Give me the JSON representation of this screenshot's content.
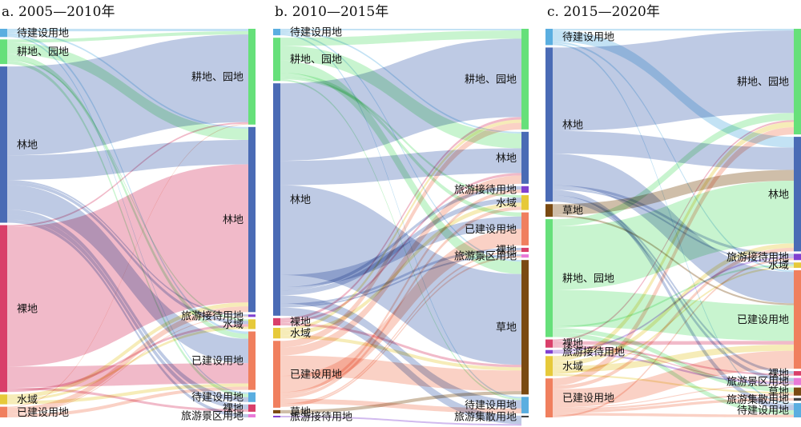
{
  "colors": {
    "待建设用地": "#5aaee0",
    "耕地、园地": "#66e07a",
    "林地": "#4a6bb5",
    "裸地": "#d93f6a",
    "水域": "#e6c93a",
    "已建设用地": "#f07f5e",
    "旅游接待用地": "#8040d0",
    "旅游景区用地": "#e87ad8",
    "草地": "#7a4a12",
    "旅游集散用地": "#444444"
  },
  "panels": [
    {
      "title": "a. 2005—2010年",
      "left": [
        {
          "id": "l_dj",
          "label": "待建设用地",
          "cat": "待建设用地",
          "value": 10
        },
        {
          "id": "l_gd",
          "label": "耕地、园地",
          "cat": "耕地、园地",
          "value": 30
        },
        {
          "id": "l_ld",
          "label": "林地",
          "cat": "林地",
          "value": 190
        },
        {
          "id": "l_lu",
          "label": "裸地",
          "cat": "裸地",
          "value": 203
        },
        {
          "id": "l_sy",
          "label": "水域",
          "cat": "水域",
          "value": 12
        },
        {
          "id": "l_yj",
          "label": "已建设用地",
          "cat": "已建设用地",
          "value": 13
        }
      ],
      "right": [
        {
          "id": "r_gd",
          "label": "耕地、园地",
          "cat": "耕地、园地",
          "value": 118
        },
        {
          "id": "r_ld",
          "label": "林地",
          "cat": "林地",
          "value": 228
        },
        {
          "id": "r_jd",
          "label": "旅游接待用地",
          "cat": "旅游接待用地",
          "value": 3
        },
        {
          "id": "r_sy",
          "label": "水域",
          "cat": "水域",
          "value": 12
        },
        {
          "id": "r_yj",
          "label": "已建设用地",
          "cat": "已建设用地",
          "value": 72
        },
        {
          "id": "r_dj",
          "label": "待建设用地",
          "cat": "待建设用地",
          "value": 12
        },
        {
          "id": "r_lu",
          "label": "裸地",
          "cat": "裸地",
          "value": 9
        },
        {
          "id": "r_jq",
          "label": "旅游景区用地",
          "cat": "旅游景区用地",
          "value": 4
        }
      ],
      "links": [
        [
          "l_dj",
          "r_gd",
          3
        ],
        [
          "l_dj",
          "r_ld",
          2
        ],
        [
          "l_dj",
          "r_yj",
          3
        ],
        [
          "l_dj",
          "r_dj",
          2
        ],
        [
          "l_gd",
          "r_gd",
          4
        ],
        [
          "l_gd",
          "r_ld",
          14
        ],
        [
          "l_gd",
          "r_yj",
          6
        ],
        [
          "l_gd",
          "r_sy",
          2
        ],
        [
          "l_gd",
          "r_dj",
          4
        ],
        [
          "l_ld",
          "r_gd",
          108
        ],
        [
          "l_ld",
          "r_ld",
          30
        ],
        [
          "l_ld",
          "r_jd",
          2
        ],
        [
          "l_ld",
          "r_sy",
          4
        ],
        [
          "l_ld",
          "r_yj",
          30
        ],
        [
          "l_ld",
          "r_dj",
          6
        ],
        [
          "l_ld",
          "r_lu",
          6
        ],
        [
          "l_ld",
          "r_jq",
          4
        ],
        [
          "l_lu",
          "r_gd",
          2
        ],
        [
          "l_lu",
          "r_ld",
          170
        ],
        [
          "l_lu",
          "r_yj",
          25
        ],
        [
          "l_lu",
          "r_lu",
          3
        ],
        [
          "l_lu",
          "r_sy",
          3
        ],
        [
          "l_sy",
          "r_ld",
          5
        ],
        [
          "l_sy",
          "r_sy",
          3
        ],
        [
          "l_sy",
          "r_yj",
          4
        ],
        [
          "l_yj",
          "r_gd",
          1
        ],
        [
          "l_yj",
          "r_ld",
          7
        ],
        [
          "l_yj",
          "r_jd",
          1
        ],
        [
          "l_yj",
          "r_yj",
          4
        ]
      ]
    },
    {
      "title": "b. 2010—2015年",
      "left": [
        {
          "id": "l_dj",
          "label": "待建设用地",
          "cat": "待建设用地",
          "value": 8
        },
        {
          "id": "l_gd",
          "label": "耕地、园地",
          "cat": "耕地、园地",
          "value": 53
        },
        {
          "id": "l_ld",
          "label": "林地",
          "cat": "林地",
          "value": 285
        },
        {
          "id": "l_lu",
          "label": "裸地",
          "cat": "裸地",
          "value": 9
        },
        {
          "id": "l_sy",
          "label": "水域",
          "cat": "水域",
          "value": 13
        },
        {
          "id": "l_yj",
          "label": "已建设用地",
          "cat": "已建设用地",
          "value": 82
        },
        {
          "id": "l_cd",
          "label": "草地",
          "cat": "草地",
          "value": 4
        },
        {
          "id": "l_jd",
          "label": "旅游接待用地",
          "cat": "旅游接待用地",
          "value": 2
        }
      ],
      "right": [
        {
          "id": "r_gd",
          "label": "耕地、园地",
          "cat": "耕地、园地",
          "value": 122
        },
        {
          "id": "r_ld",
          "label": "林地",
          "cat": "林地",
          "value": 63
        },
        {
          "id": "r_jd",
          "label": "旅游接待用地",
          "cat": "旅游接待用地",
          "value": 8
        },
        {
          "id": "r_sy",
          "label": "水域",
          "cat": "水域",
          "value": 18
        },
        {
          "id": "r_yj",
          "label": "已建设用地",
          "cat": "已建设用地",
          "value": 40
        },
        {
          "id": "r_lu",
          "label": "裸地",
          "cat": "裸地",
          "value": 5
        },
        {
          "id": "r_jq",
          "label": "旅游景区用地",
          "cat": "旅游景区用地",
          "value": 4
        },
        {
          "id": "r_cd",
          "label": "草地",
          "cat": "草地",
          "value": 163
        },
        {
          "id": "r_dj",
          "label": "待建设用地",
          "cat": "待建设用地",
          "value": 20
        },
        {
          "id": "r_js",
          "label": "旅游集散用地",
          "cat": "旅游集散用地",
          "value": 2
        }
      ],
      "links": [
        [
          "l_dj",
          "r_gd",
          2
        ],
        [
          "l_dj",
          "r_ld",
          2
        ],
        [
          "l_dj",
          "r_cd",
          2
        ],
        [
          "l_dj",
          "r_dj",
          2
        ],
        [
          "l_gd",
          "r_gd",
          10
        ],
        [
          "l_gd",
          "r_ld",
          18
        ],
        [
          "l_gd",
          "r_cd",
          15
        ],
        [
          "l_gd",
          "r_yj",
          5
        ],
        [
          "l_gd",
          "r_sy",
          3
        ],
        [
          "l_gd",
          "r_dj",
          2
        ],
        [
          "l_ld",
          "r_gd",
          95
        ],
        [
          "l_ld",
          "r_ld",
          30
        ],
        [
          "l_ld",
          "r_cd",
          110
        ],
        [
          "l_ld",
          "r_yj",
          15
        ],
        [
          "l_ld",
          "r_jd",
          4
        ],
        [
          "l_ld",
          "r_sy",
          6
        ],
        [
          "l_ld",
          "r_dj",
          10
        ],
        [
          "l_ld",
          "r_lu",
          3
        ],
        [
          "l_ld",
          "r_jq",
          2
        ],
        [
          "l_ld",
          "r_js",
          10
        ],
        [
          "l_lu",
          "r_gd",
          3
        ],
        [
          "l_lu",
          "r_ld",
          3
        ],
        [
          "l_lu",
          "r_cd",
          3
        ],
        [
          "l_sy",
          "r_gd",
          4
        ],
        [
          "l_sy",
          "r_sy",
          5
        ],
        [
          "l_sy",
          "r_cd",
          4
        ],
        [
          "l_yj",
          "r_gd",
          8
        ],
        [
          "l_yj",
          "r_ld",
          10
        ],
        [
          "l_yj",
          "r_cd",
          25
        ],
        [
          "l_yj",
          "r_yj",
          20
        ],
        [
          "l_yj",
          "r_jd",
          4
        ],
        [
          "l_yj",
          "r_sy",
          4
        ],
        [
          "l_yj",
          "r_dj",
          6
        ],
        [
          "l_yj",
          "r_lu",
          2
        ],
        [
          "l_yj",
          "r_jq",
          2
        ],
        [
          "l_cd",
          "r_cd",
          4
        ],
        [
          "l_jd",
          "r_js",
          2
        ]
      ]
    },
    {
      "title": "c. 2015—2020年",
      "left": [
        {
          "id": "l_dj",
          "label": "待建设用地",
          "cat": "待建设用地",
          "value": 18
        },
        {
          "id": "l_ld",
          "label": "林地",
          "cat": "林地",
          "value": 170
        },
        {
          "id": "l_cd",
          "label": "草地",
          "cat": "草地",
          "value": 14
        },
        {
          "id": "l_gd",
          "label": "耕地、园地",
          "cat": "耕地、园地",
          "value": 130
        },
        {
          "id": "l_lu",
          "label": "裸地",
          "cat": "裸地",
          "value": 9
        },
        {
          "id": "l_jd",
          "label": "旅游接待用地",
          "cat": "旅游接待用地",
          "value": 4
        },
        {
          "id": "l_sy",
          "label": "水域",
          "cat": "水域",
          "value": 22
        },
        {
          "id": "l_yj",
          "label": "已建设用地",
          "cat": "已建设用地",
          "value": 43
        }
      ],
      "right": [
        {
          "id": "r_gd",
          "label": "耕地、园地",
          "cat": "耕地、园地",
          "value": 118
        },
        {
          "id": "r_ld",
          "label": "林地",
          "cat": "林地",
          "value": 128
        },
        {
          "id": "r_jd",
          "label": "旅游接待用地",
          "cat": "旅游接待用地",
          "value": 7
        },
        {
          "id": "r_sy",
          "label": "水域",
          "cat": "水域",
          "value": 6
        },
        {
          "id": "r_yj",
          "label": "已建设用地",
          "cat": "已建设用地",
          "value": 110
        },
        {
          "id": "r_lu",
          "label": "裸地",
          "cat": "裸地",
          "value": 5
        },
        {
          "id": "r_jq",
          "label": "旅游景区用地",
          "cat": "旅游景区用地",
          "value": 8
        },
        {
          "id": "r_cd",
          "label": "草地",
          "cat": "草地",
          "value": 9
        },
        {
          "id": "r_js",
          "label": "旅游集散用地",
          "cat": "旅游集散用地",
          "value": 3
        },
        {
          "id": "r_dj",
          "label": "待建设用地",
          "cat": "待建设用地",
          "value": 16
        }
      ],
      "links": [
        [
          "l_dj",
          "r_gd",
          2
        ],
        [
          "l_dj",
          "r_ld",
          12
        ],
        [
          "l_dj",
          "r_yj",
          2
        ],
        [
          "l_dj",
          "r_dj",
          2
        ],
        [
          "l_ld",
          "r_gd",
          92
        ],
        [
          "l_ld",
          "r_ld",
          25
        ],
        [
          "l_ld",
          "r_yj",
          35
        ],
        [
          "l_ld",
          "r_jd",
          3
        ],
        [
          "l_ld",
          "r_sy",
          2
        ],
        [
          "l_ld",
          "r_dj",
          6
        ],
        [
          "l_ld",
          "r_lu",
          3
        ],
        [
          "l_ld",
          "r_jq",
          4
        ],
        [
          "l_cd",
          "r_ld",
          12
        ],
        [
          "l_cd",
          "r_yj",
          2
        ],
        [
          "l_gd",
          "r_gd",
          8
        ],
        [
          "l_gd",
          "r_ld",
          70
        ],
        [
          "l_gd",
          "r_yj",
          40
        ],
        [
          "l_gd",
          "r_sy",
          2
        ],
        [
          "l_gd",
          "r_cd",
          5
        ],
        [
          "l_gd",
          "r_dj",
          5
        ],
        [
          "l_lu",
          "r_gd",
          2
        ],
        [
          "l_lu",
          "r_yj",
          4
        ],
        [
          "l_lu",
          "r_lu",
          2
        ],
        [
          "l_lu",
          "r_jq",
          1
        ],
        [
          "l_jd",
          "r_jd",
          2
        ],
        [
          "l_jd",
          "r_jq",
          2
        ],
        [
          "l_sy",
          "r_gd",
          6
        ],
        [
          "l_sy",
          "r_ld",
          5
        ],
        [
          "l_sy",
          "r_yj",
          7
        ],
        [
          "l_sy",
          "r_sy",
          2
        ],
        [
          "l_sy",
          "r_cd",
          2
        ],
        [
          "l_yj",
          "r_gd",
          8
        ],
        [
          "l_yj",
          "r_ld",
          4
        ],
        [
          "l_yj",
          "r_yj",
          20
        ],
        [
          "l_yj",
          "r_jq",
          1
        ],
        [
          "l_yj",
          "r_cd",
          2
        ],
        [
          "l_yj",
          "r_js",
          3
        ],
        [
          "l_yj",
          "r_dj",
          3
        ],
        [
          "l_yj",
          "r_jd",
          2
        ]
      ]
    }
  ]
}
